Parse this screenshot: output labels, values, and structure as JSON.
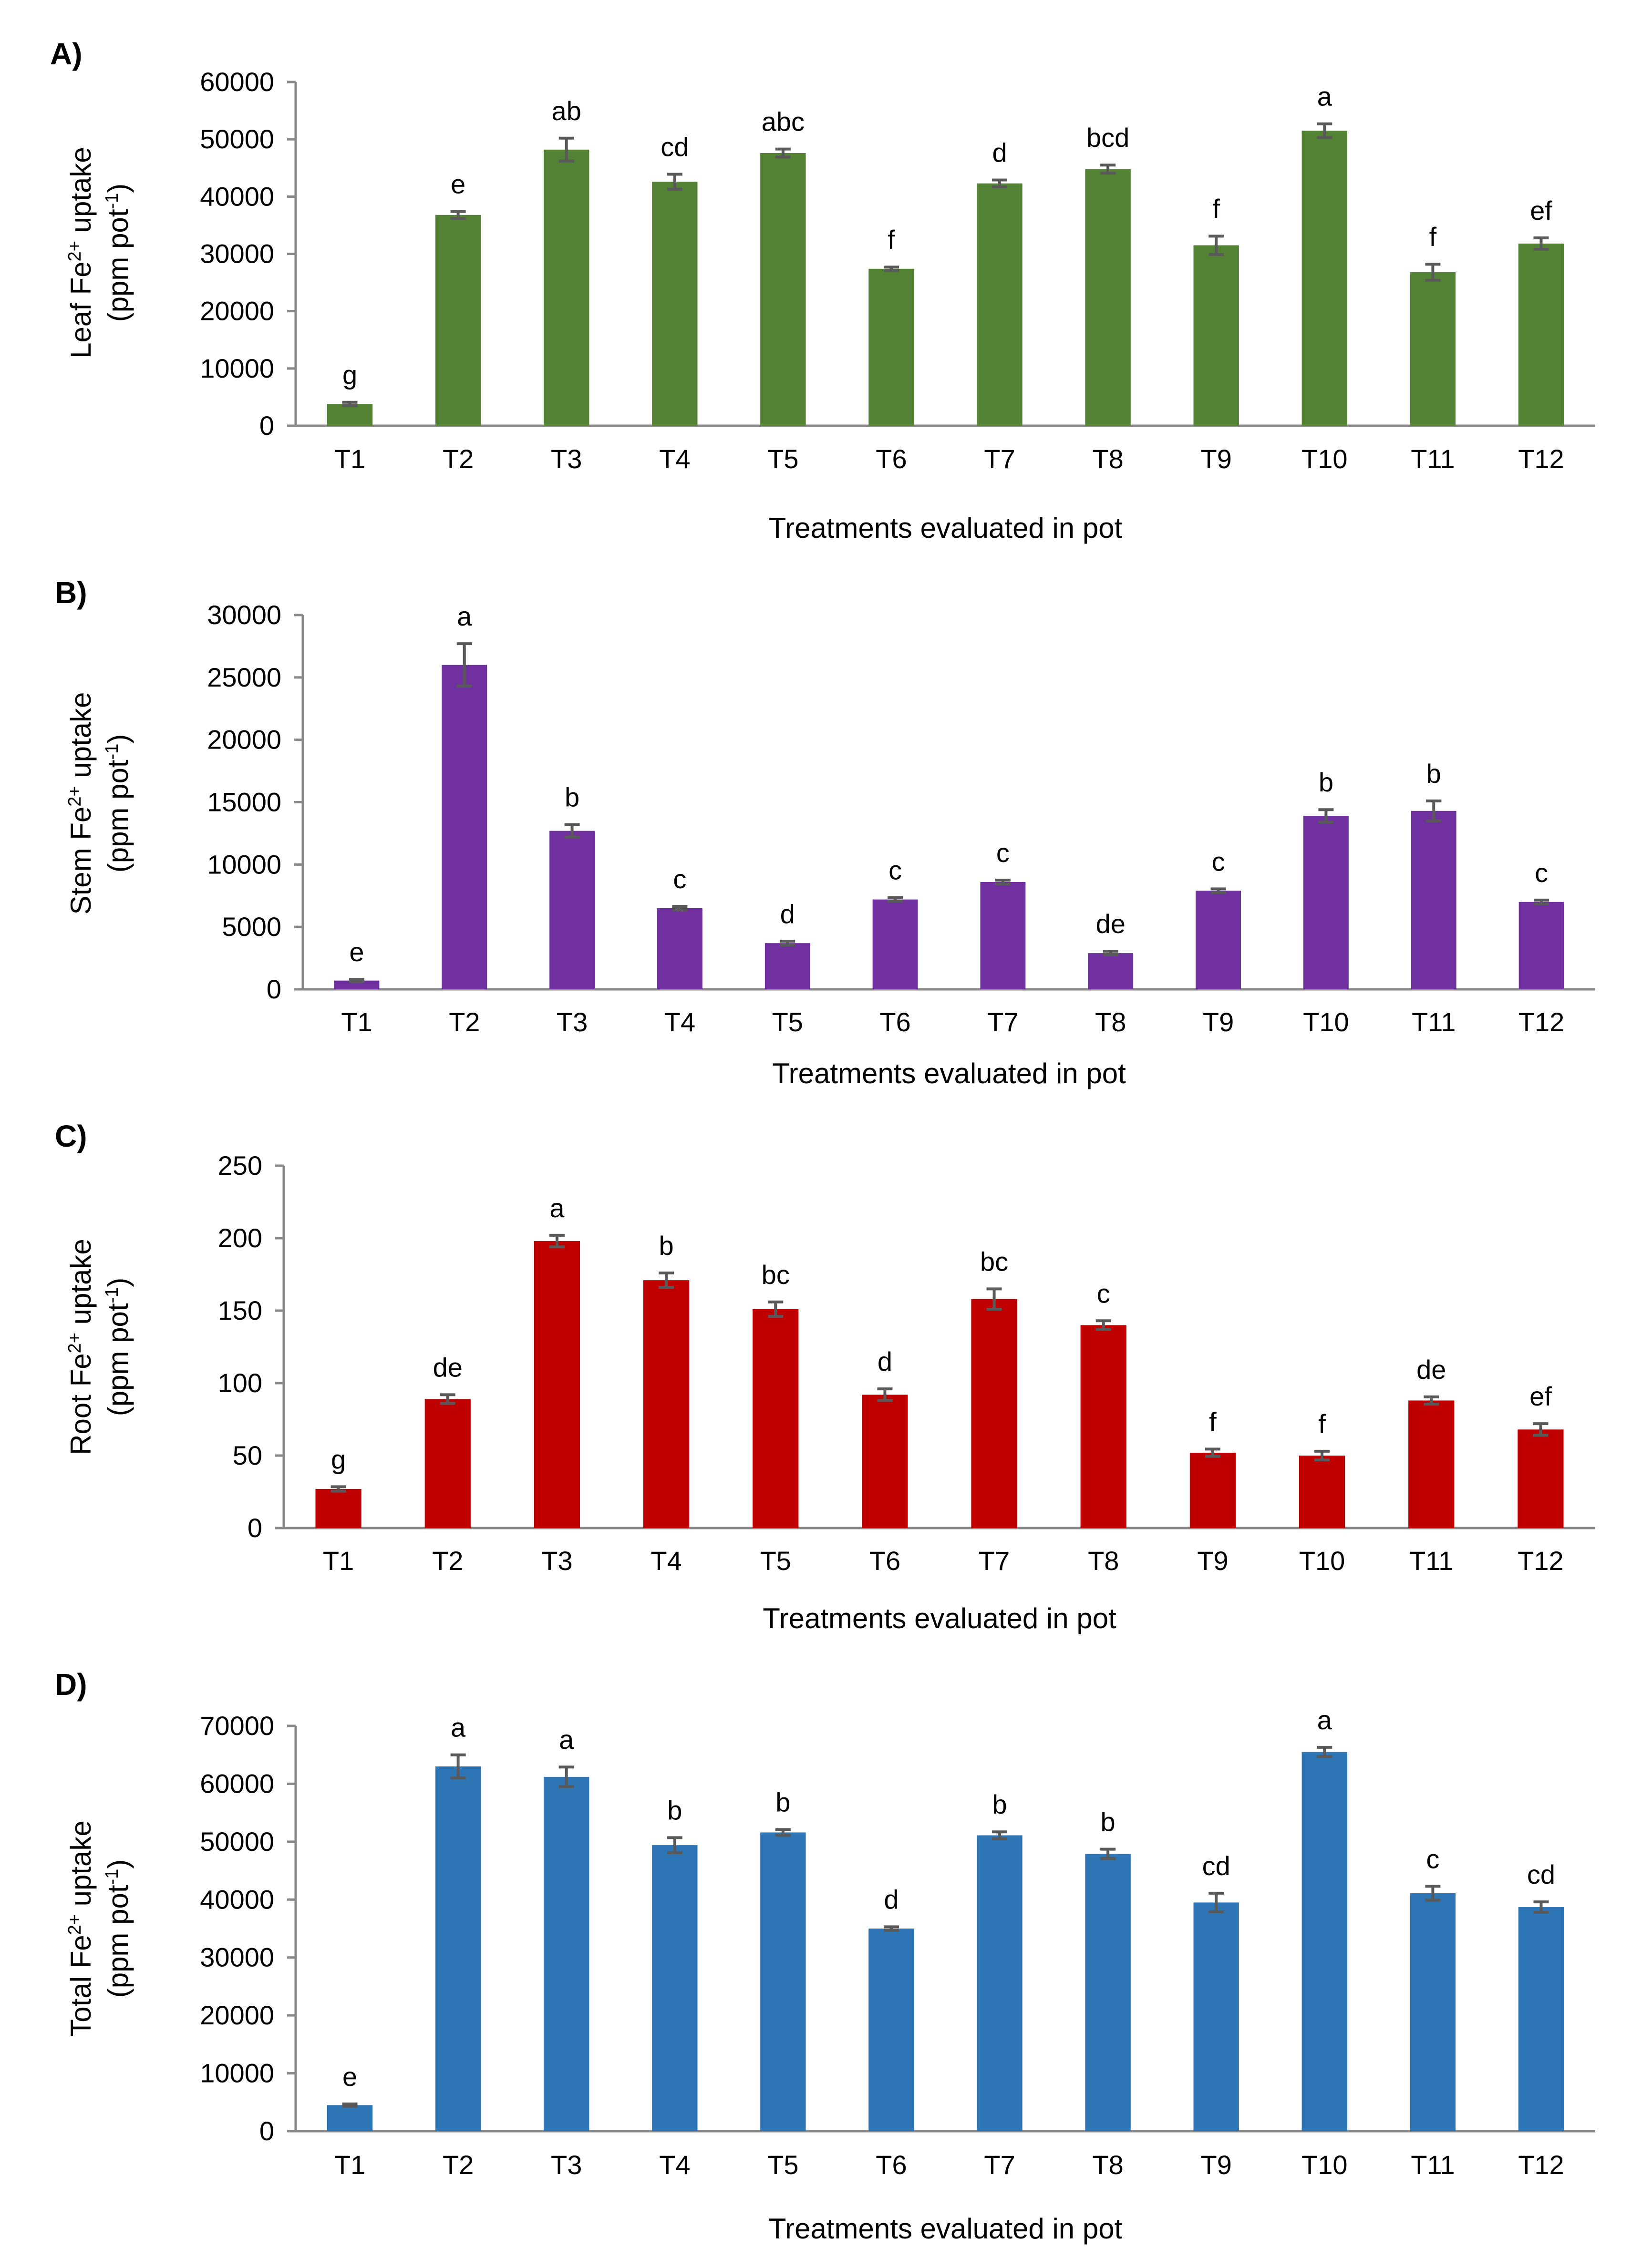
{
  "chart_data": [
    {
      "type": "bar",
      "panel": "A)",
      "title": "",
      "color": "#548235",
      "ylabel": "Leaf Fe²⁺ uptake (ppm pot⁻¹)",
      "ylabel_lines": [
        "Leaf Fe",
        "2+",
        " uptake",
        "(ppm pot",
        "-1",
        ")"
      ],
      "xlabel": "Treatments evaluated in pot",
      "ylim": [
        0,
        60000
      ],
      "yticks": [
        0,
        10000,
        20000,
        30000,
        40000,
        50000,
        60000
      ],
      "categories": [
        "T1",
        "T2",
        "T3",
        "T4",
        "T5",
        "T6",
        "T7",
        "T8",
        "T9",
        "T10",
        "T11",
        "T12"
      ],
      "values": [
        3800,
        36800,
        48200,
        42600,
        47600,
        27400,
        42300,
        44800,
        31500,
        51500,
        26800,
        31800
      ],
      "errors": [
        300,
        600,
        2000,
        1300,
        700,
        300,
        600,
        700,
        1600,
        1200,
        1400,
        1000
      ],
      "letters": [
        "g",
        "e",
        "ab",
        "cd",
        "abc",
        "f",
        "d",
        "bcd",
        "f",
        "a",
        "f",
        "ef"
      ]
    },
    {
      "type": "bar",
      "panel": "B)",
      "title": "",
      "color": "#7030A0",
      "ylabel": "Stem Fe²⁺ uptake (ppm pot⁻¹)",
      "ylabel_lines": [
        "Stem Fe",
        "2+",
        " uptake",
        "(ppm pot",
        "-1",
        ")"
      ],
      "xlabel": "Treatments evaluated in pot",
      "ylim": [
        0,
        30000
      ],
      "yticks": [
        0,
        5000,
        10000,
        15000,
        20000,
        25000,
        30000
      ],
      "categories": [
        "T1",
        "T2",
        "T3",
        "T4",
        "T5",
        "T6",
        "T7",
        "T8",
        "T9",
        "T10",
        "T11",
        "T12"
      ],
      "values": [
        700,
        26000,
        12700,
        6500,
        3700,
        7200,
        8600,
        2900,
        7900,
        13900,
        14300,
        7000
      ],
      "errors": [
        100,
        1700,
        500,
        150,
        150,
        150,
        150,
        150,
        150,
        500,
        800,
        150
      ],
      "letters": [
        "e",
        "a",
        "b",
        "c",
        "d",
        "c",
        "c",
        "de",
        "c",
        "b",
        "b",
        "c"
      ]
    },
    {
      "type": "bar",
      "panel": "C)",
      "title": "",
      "color": "#C00000",
      "ylabel": "Root Fe²⁺ uptake (ppm pot⁻¹)",
      "ylabel_lines": [
        "Root Fe",
        "2+",
        " uptake",
        "(ppm pot",
        "-1",
        ")"
      ],
      "xlabel": "Treatments evaluated in pot",
      "ylim": [
        0,
        250
      ],
      "yticks": [
        0,
        50,
        100,
        150,
        200,
        250
      ],
      "categories": [
        "T1",
        "T2",
        "T3",
        "T4",
        "T5",
        "T6",
        "T7",
        "T8",
        "T9",
        "T10",
        "T11",
        "T12"
      ],
      "values": [
        27,
        89,
        198,
        171,
        151,
        92,
        158,
        140,
        52,
        50,
        88,
        68
      ],
      "errors": [
        1.5,
        3,
        4,
        5,
        5,
        4,
        7,
        3,
        2.5,
        3,
        2.5,
        4
      ],
      "letters": [
        "g",
        "de",
        "a",
        "b",
        "bc",
        "d",
        "bc",
        "c",
        "f",
        "f",
        "de",
        "ef"
      ]
    },
    {
      "type": "bar",
      "panel": "D)",
      "title": "",
      "color": "#2E75B6",
      "ylabel": "Total Fe²⁺ uptake (ppm pot⁻¹)",
      "ylabel_lines": [
        "Total Fe",
        "2+",
        " uptake",
        "(ppm pot",
        "-1",
        ")"
      ],
      "xlabel": "Treatments evaluated in pot",
      "ylim": [
        0,
        70000
      ],
      "yticks": [
        0,
        10000,
        20000,
        30000,
        40000,
        50000,
        60000,
        70000
      ],
      "categories": [
        "T1",
        "T2",
        "T3",
        "T4",
        "T5",
        "T6",
        "T7",
        "T8",
        "T9",
        "T10",
        "T11",
        "T12"
      ],
      "values": [
        4500,
        63000,
        61200,
        49400,
        51600,
        35000,
        51100,
        47900,
        39500,
        65500,
        41100,
        38700
      ],
      "errors": [
        200,
        2000,
        1700,
        1300,
        500,
        300,
        600,
        800,
        1600,
        800,
        1200,
        900
      ],
      "letters": [
        "e",
        "a",
        "a",
        "b",
        "b",
        "d",
        "b",
        "b",
        "cd",
        "a",
        "c",
        "cd"
      ]
    }
  ]
}
